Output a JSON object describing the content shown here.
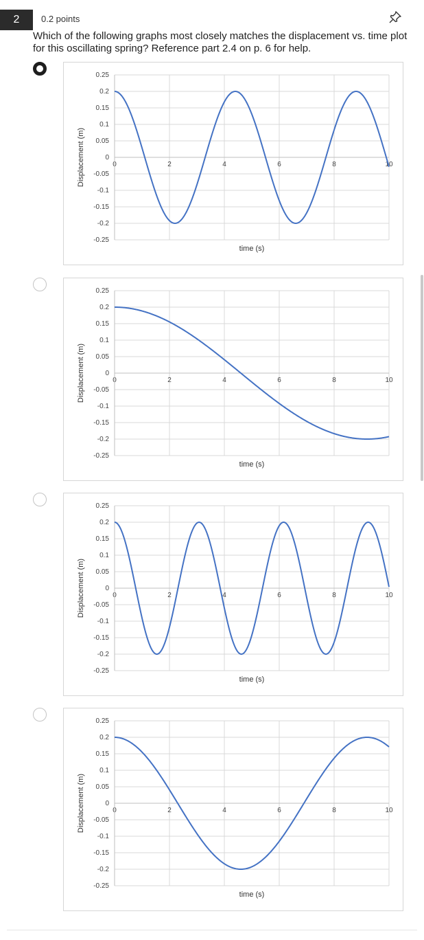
{
  "question": {
    "number": "2",
    "points": "0.2 points",
    "text": "Which of the following graphs most closely matches the displacement vs. time plot for this oscillating spring? Reference part 2.4 on p. 6 for help.",
    "pin_icon": "pin-icon"
  },
  "options": [
    {
      "selected": true,
      "chart_data": {
        "type": "line",
        "xlabel": "time (s)",
        "ylabel": "Displacement (m)",
        "x_ticks": [
          "0",
          "2",
          "4",
          "6",
          "8",
          "10"
        ],
        "y_ticks": [
          "0.25",
          "0.2",
          "0.15",
          "0.1",
          "0.05",
          "0",
          "-0.05",
          "-0.1",
          "-0.15",
          "-0.2",
          "-0.25"
        ],
        "xlim": [
          0,
          10
        ],
        "ylim": [
          -0.25,
          0.25
        ],
        "grid": true,
        "line_color": "#4472c4",
        "series": [
          {
            "function": "A*cos(2*pi*t/T)",
            "amplitude": 0.2,
            "period": 4.4,
            "t_start": 0,
            "t_end": 10
          }
        ]
      }
    },
    {
      "selected": false,
      "chart_data": {
        "type": "line",
        "xlabel": "time (s)",
        "ylabel": "Displacement (m)",
        "x_ticks": [
          "0",
          "2",
          "4",
          "6",
          "8",
          "10"
        ],
        "y_ticks": [
          "0.25",
          "0.2",
          "0.15",
          "0.1",
          "0.05",
          "0",
          "-0.05",
          "-0.1",
          "-0.15",
          "-0.2",
          "-0.25"
        ],
        "xlim": [
          0,
          10
        ],
        "ylim": [
          -0.25,
          0.25
        ],
        "grid": true,
        "line_color": "#4472c4",
        "series": [
          {
            "function": "A*cos(2*pi*t/T)",
            "amplitude": 0.2,
            "period": 18.4,
            "t_start": 0,
            "t_end": 10
          }
        ]
      }
    },
    {
      "selected": false,
      "chart_data": {
        "type": "line",
        "xlabel": "time (s)",
        "ylabel": "Displacement (m)",
        "x_ticks": [
          "0",
          "2",
          "4",
          "6",
          "8",
          "10"
        ],
        "y_ticks": [
          "0.25",
          "0.2",
          "0.15",
          "0.1",
          "0.05",
          "0",
          "-0.05",
          "-0.1",
          "-0.15",
          "-0.2",
          "-0.25"
        ],
        "xlim": [
          0,
          10
        ],
        "ylim": [
          -0.25,
          0.25
        ],
        "grid": true,
        "line_color": "#4472c4",
        "series": [
          {
            "function": "A*cos(2*pi*t/T)",
            "amplitude": 0.2,
            "period": 3.08,
            "t_start": 0,
            "t_end": 10
          }
        ]
      }
    },
    {
      "selected": false,
      "chart_data": {
        "type": "line",
        "xlabel": "time (s)",
        "ylabel": "Displacement (m)",
        "x_ticks": [
          "0",
          "2",
          "4",
          "6",
          "8",
          "10"
        ],
        "y_ticks": [
          "0.25",
          "0.2",
          "0.15",
          "0.1",
          "0.05",
          "0",
          "-0.05",
          "-0.1",
          "-0.15",
          "-0.2",
          "-0.25"
        ],
        "xlim": [
          0,
          10
        ],
        "ylim": [
          -0.25,
          0.25
        ],
        "grid": true,
        "line_color": "#4472c4",
        "series": [
          {
            "function": "A*cos(2*pi*t/T)",
            "amplitude": 0.2,
            "period": 9.2,
            "t_start": 0,
            "t_end": 10
          }
        ]
      }
    }
  ]
}
